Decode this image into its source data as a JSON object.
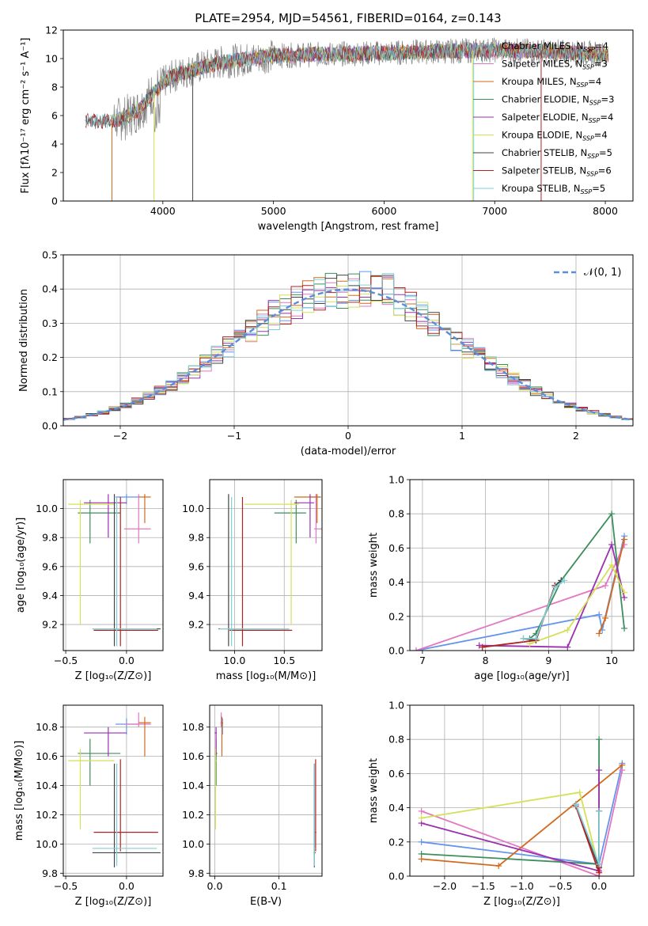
{
  "colors": {
    "chabrier_miles": "#6495ED",
    "salpeter_miles": "#E377C2",
    "kroupa_miles": "#D2691E",
    "chabrier_elodie": "#3E8E5E",
    "salpeter_elodie": "#9B30B0",
    "kroupa_elodie": "#D4E157",
    "chabrier_stelib": "#444444",
    "salpeter_stelib": "#B22222",
    "kroupa_stelib": "#80D0D8"
  },
  "chart_data": [
    {
      "id": "spectrum",
      "type": "line",
      "title": "PLATE=2954, MJD=54561, FIBERID=0164, z=0.143",
      "xlabel": "wavelength [Angstrom, rest frame]",
      "ylabel": "Flux [fλ10⁻¹⁷ erg cm⁻² s⁻¹ A⁻¹]",
      "xlim": [
        3100,
        8250
      ],
      "ylim": [
        0,
        12
      ],
      "xticks": [
        "4000",
        "5000",
        "6000",
        "7000",
        "8000"
      ],
      "yticks": [
        "0",
        "2",
        "4",
        "6",
        "8",
        "10",
        "12"
      ],
      "legend_position": "right",
      "legend": [
        "Chabrier MILES, NSSP=4",
        "Salpeter MILES, NSSP=3",
        "Kroupa MILES, NSSP=4",
        "Chabrier ELODIE, NSSP=3",
        "Salpeter ELODIE, NSSP=4",
        "Kroupa ELODIE, NSSP=4",
        "Chabrier STELIB, NSSP=5",
        "Salpeter STELIB, NSSP=6",
        "Kroupa STELIB, NSSP=5"
      ],
      "continuum": {
        "x": [
          3300,
          3500,
          3650,
          3800,
          3900,
          4000,
          4100,
          4300,
          4500,
          5000,
          5500,
          6000,
          6500,
          7000,
          7500,
          8000
        ],
        "y": [
          5.6,
          5.6,
          5.8,
          6.5,
          7.5,
          8.3,
          8.8,
          9.3,
          9.7,
          10.2,
          10.3,
          10.4,
          10.5,
          10.6,
          10.5,
          10.3
        ]
      },
      "dropouts": [
        {
          "x": 3540,
          "series": "kroupa_miles"
        },
        {
          "x": 3920,
          "series": "kroupa_elodie"
        },
        {
          "x": 4270,
          "series": "chabrier_stelib"
        },
        {
          "x": 6800,
          "series": "kroupa_elodie"
        },
        {
          "x": 6810,
          "series": "kroupa_stelib"
        },
        {
          "x": 7420,
          "series": "salpeter_stelib"
        }
      ]
    },
    {
      "id": "residuals",
      "type": "histogram",
      "xlabel": "(data-model)/error",
      "ylabel": "Normed distribution",
      "xlim": [
        -2.5,
        2.5
      ],
      "ylim": [
        0,
        0.5
      ],
      "xticks": [
        "−2",
        "−1",
        "0",
        "1",
        "2"
      ],
      "yticks": [
        "0.0",
        "0.1",
        "0.2",
        "0.3",
        "0.4",
        "0.5"
      ],
      "gaussian_label": "𝒩(0, 1)",
      "bin_width": 0.1
    },
    {
      "id": "age_vs_z",
      "type": "errorbar",
      "xlabel": "Z [log₁₀(Z/Z⊙)]",
      "ylabel": "age  [log₁₀(age/yr)]",
      "xlim": [
        -0.52,
        0.3
      ],
      "ylim": [
        9.02,
        10.2
      ],
      "xticks": [
        "−0.5",
        "0.0"
      ],
      "yticks": [
        "9.2",
        "9.4",
        "9.6",
        "9.8",
        "10.0"
      ]
    },
    {
      "id": "age_vs_mass",
      "type": "errorbar",
      "xlabel": "mass [log₁₀(M/M⊙)]",
      "ylabel": "",
      "xlim": [
        9.75,
        10.88
      ],
      "ylim": [
        9.02,
        10.2
      ],
      "xticks": [
        "10.0",
        "10.5"
      ],
      "yticks": [
        "9.2",
        "9.4",
        "9.6",
        "9.8",
        "10.0"
      ]
    },
    {
      "id": "weight_vs_age",
      "type": "line",
      "xlabel": "age  [log₁₀(age/yr)]",
      "ylabel": "mass weight",
      "xlim": [
        6.8,
        10.35
      ],
      "ylim": [
        0,
        1
      ],
      "xticks": [
        "7",
        "8",
        "9",
        "10"
      ],
      "yticks": [
        "0.0",
        "0.2",
        "0.4",
        "0.6",
        "0.8",
        "1.0"
      ],
      "series": [
        {
          "key": "chabrier_miles",
          "x": [
            6.9,
            9.8,
            9.85,
            10.2
          ],
          "y": [
            0.0,
            0.21,
            0.12,
            0.67
          ]
        },
        {
          "key": "salpeter_miles",
          "x": [
            6.9,
            9.9,
            10.2
          ],
          "y": [
            0.0,
            0.38,
            0.62
          ]
        },
        {
          "key": "kroupa_miles",
          "x": [
            9.8,
            9.9,
            10.2
          ],
          "y": [
            0.1,
            0.19,
            0.65
          ]
        },
        {
          "key": "chabrier_elodie",
          "x": [
            8.7,
            8.8,
            9.2,
            10.0,
            10.2
          ],
          "y": [
            0.07,
            0.1,
            0.41,
            0.8,
            0.13
          ]
        },
        {
          "key": "salpeter_elodie",
          "x": [
            7.9,
            9.3,
            10.0,
            10.2
          ],
          "y": [
            0.03,
            0.02,
            0.62,
            0.31
          ]
        },
        {
          "key": "kroupa_elodie",
          "x": [
            8.7,
            9.3,
            10.0,
            10.2
          ],
          "y": [
            0.04,
            0.12,
            0.5,
            0.34
          ]
        },
        {
          "key": "chabrier_stelib",
          "x": [
            8.6,
            8.8,
            9.1,
            9.2
          ],
          "y": [
            0.07,
            0.06,
            0.38,
            0.41
          ]
        },
        {
          "key": "salpeter_stelib",
          "x": [
            7.95,
            8.8,
            9.1
          ],
          "y": [
            0.02,
            0.06,
            0.38
          ]
        },
        {
          "key": "kroupa_stelib",
          "x": [
            8.6,
            8.8,
            9.1,
            9.25
          ],
          "y": [
            0.07,
            0.07,
            0.37,
            0.41
          ]
        }
      ]
    },
    {
      "id": "mass_vs_z",
      "type": "errorbar",
      "xlabel": "Z [log₁₀(Z/Z⊙)]",
      "ylabel": "mass [log₁₀(M/M⊙)]",
      "xlim": [
        -0.52,
        0.3
      ],
      "ylim": [
        9.78,
        10.95
      ],
      "xticks": [
        "−0.5",
        "0.0"
      ],
      "yticks": [
        "9.8",
        "10.0",
        "10.2",
        "10.4",
        "10.6",
        "10.8"
      ]
    },
    {
      "id": "mass_vs_ebv",
      "type": "errorbar",
      "xlabel": "E(B-V)",
      "ylabel": "",
      "xlim": [
        -0.008,
        0.167
      ],
      "ylim": [
        9.78,
        10.95
      ],
      "xticks": [
        "0.0",
        "0.1"
      ],
      "yticks": [
        "9.8",
        "10.0",
        "10.2",
        "10.4",
        "10.6",
        "10.8"
      ]
    },
    {
      "id": "weight_vs_z",
      "type": "line",
      "xlabel": "Z [log₁₀(Z/Z⊙)]",
      "ylabel": "mass weight",
      "xlim": [
        -2.45,
        0.45
      ],
      "ylim": [
        0,
        1
      ],
      "xticks": [
        "−2.0",
        "−1.5",
        "−1.0",
        "−0.5",
        "0.0"
      ],
      "yticks": [
        "0.0",
        "0.2",
        "0.4",
        "0.6",
        "0.8",
        "1.0"
      ],
      "series": [
        {
          "key": "chabrier_miles",
          "x": [
            -2.3,
            0.0,
            0.3
          ],
          "y": [
            0.2,
            0.07,
            0.66
          ]
        },
        {
          "key": "salpeter_miles",
          "x": [
            -2.3,
            0.0,
            0.3
          ],
          "y": [
            0.38,
            0.0,
            0.62
          ]
        },
        {
          "key": "kroupa_miles",
          "x": [
            -2.3,
            -1.3,
            0.3
          ],
          "y": [
            0.1,
            0.06,
            0.65
          ]
        },
        {
          "key": "chabrier_elodie",
          "x": [
            -2.3,
            0.0,
            0.0
          ],
          "y": [
            0.13,
            0.07,
            0.8
          ]
        },
        {
          "key": "salpeter_elodie",
          "x": [
            -2.3,
            0.0,
            0.0
          ],
          "y": [
            0.31,
            0.03,
            0.62
          ]
        },
        {
          "key": "kroupa_elodie",
          "x": [
            -2.3,
            -0.25,
            0.0
          ],
          "y": [
            0.34,
            0.49,
            0.05
          ]
        },
        {
          "key": "chabrier_stelib",
          "x": [
            -0.3,
            0.0,
            0.0
          ],
          "y": [
            0.42,
            0.05,
            0.38
          ]
        },
        {
          "key": "salpeter_stelib",
          "x": [
            -0.3,
            0.0,
            0.0
          ],
          "y": [
            0.41,
            0.02,
            0.38
          ]
        },
        {
          "key": "kroupa_stelib",
          "x": [
            -0.3,
            0.0,
            0.0
          ],
          "y": [
            0.42,
            0.07,
            0.38
          ]
        }
      ]
    }
  ],
  "ssp_points": [
    {
      "key": "chabrier_miles",
      "z": 0.0,
      "z_lo": -0.09,
      "z_hi": 0.1,
      "age": 10.08,
      "age_lo": 10.03,
      "age_hi": 10.1,
      "mass": 10.82,
      "mass_lo": 10.75,
      "mass_hi": 10.86,
      "ebv": 0.012,
      "ebv_lo": 0.01,
      "ebv_hi": 0.013
    },
    {
      "key": "salpeter_miles",
      "z": 0.1,
      "z_lo": -0.02,
      "z_hi": 0.2,
      "age": 9.86,
      "age_lo": 9.76,
      "age_hi": 10.1,
      "mass": 10.82,
      "mass_lo": 10.8,
      "mass_hi": 10.9,
      "ebv": 0.01,
      "ebv_lo": 0.009,
      "ebv_hi": 0.012
    },
    {
      "key": "kroupa_miles",
      "z": 0.15,
      "z_lo": 0.1,
      "z_hi": 0.2,
      "age": 10.08,
      "age_lo": 9.9,
      "age_hi": 10.1,
      "mass": 10.83,
      "mass_lo": 10.6,
      "mass_hi": 10.87,
      "ebv": 0.011,
      "ebv_lo": 0.009,
      "ebv_hi": 0.013
    },
    {
      "key": "chabrier_elodie",
      "z": -0.3,
      "z_lo": -0.4,
      "z_hi": -0.05,
      "age": 9.97,
      "age_lo": 9.76,
      "age_hi": 10.06,
      "mass": 10.62,
      "mass_lo": 10.4,
      "mass_hi": 10.72,
      "ebv": 0.002,
      "ebv_lo": 0.0,
      "ebv_hi": 0.004
    },
    {
      "key": "salpeter_elodie",
      "z": -0.15,
      "z_lo": -0.35,
      "z_hi": 0.0,
      "age": 10.04,
      "age_lo": 9.8,
      "age_hi": 10.1,
      "mass": 10.76,
      "mass_lo": 10.6,
      "mass_hi": 10.8,
      "ebv": 0.002,
      "ebv_lo": 0.0,
      "ebv_hi": 0.003
    },
    {
      "key": "kroupa_elodie",
      "z": -0.38,
      "z_lo": -0.48,
      "z_hi": -0.1,
      "age": 10.03,
      "age_lo": 9.2,
      "age_hi": 10.06,
      "mass": 10.57,
      "mass_lo": 10.1,
      "mass_hi": 10.65,
      "ebv": 0.001,
      "ebv_lo": 0.0,
      "ebv_hi": 0.003
    },
    {
      "key": "chabrier_stelib",
      "z": -0.1,
      "z_lo": -0.28,
      "z_hi": 0.28,
      "age": 9.17,
      "age_lo": 9.05,
      "age_hi": 10.1,
      "mass": 9.94,
      "mass_lo": 9.84,
      "mass_hi": 10.55,
      "ebv": 0.155,
      "ebv_lo": 0.154,
      "ebv_hi": 0.157
    },
    {
      "key": "salpeter_stelib",
      "z": -0.05,
      "z_lo": -0.27,
      "z_hi": 0.26,
      "age": 9.16,
      "age_lo": 9.05,
      "age_hi": 10.08,
      "mass": 10.08,
      "mass_lo": 9.95,
      "mass_hi": 10.58,
      "ebv": 0.157,
      "ebv_lo": 0.156,
      "ebv_hi": 0.158
    },
    {
      "key": "kroupa_stelib",
      "z": -0.08,
      "z_lo": -0.28,
      "z_hi": 0.25,
      "age": 9.17,
      "age_lo": 9.05,
      "age_hi": 10.08,
      "mass": 9.97,
      "mass_lo": 9.85,
      "mass_hi": 10.55,
      "ebv": 0.155,
      "ebv_lo": 0.154,
      "ebv_hi": 0.157
    }
  ]
}
